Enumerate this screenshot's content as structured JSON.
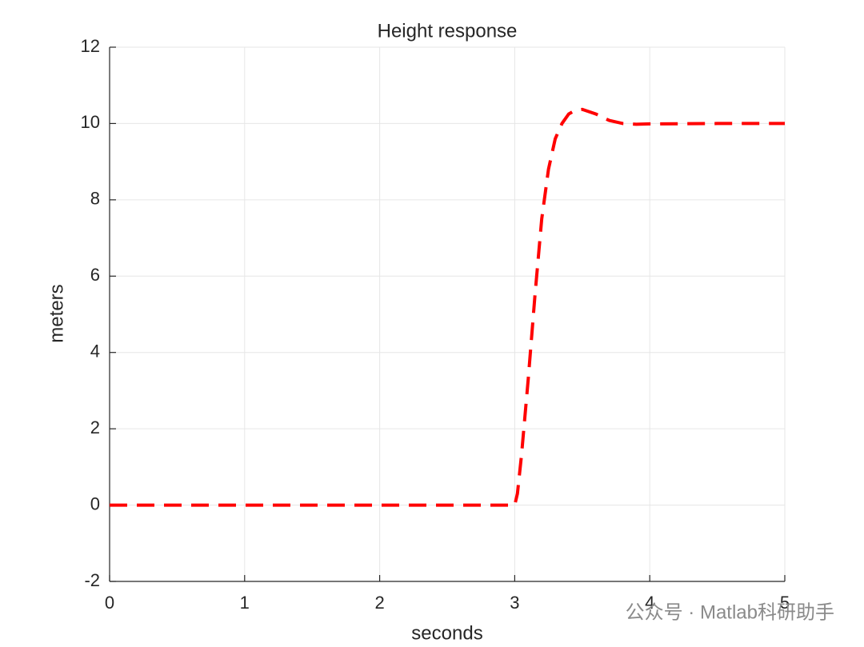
{
  "chart_data": {
    "type": "line",
    "title": "Height response",
    "x_label": "seconds",
    "y_label": "meters",
    "x": [
      0,
      0.5,
      1,
      1.5,
      2,
      2.5,
      3,
      3.02,
      3.05,
      3.1,
      3.15,
      3.2,
      3.25,
      3.3,
      3.35,
      3.4,
      3.45,
      3.5,
      3.6,
      3.7,
      3.8,
      3.9,
      4,
      4.5,
      5
    ],
    "series": [
      {
        "color": "#ff0000",
        "values": [
          0,
          0,
          0,
          0,
          0,
          0,
          0,
          0.3,
          1.3,
          3.3,
          5.5,
          7.5,
          8.8,
          9.6,
          10.0,
          10.25,
          10.35,
          10.37,
          10.25,
          10.08,
          10.0,
          9.98,
          9.99,
          10,
          10
        ]
      }
    ],
    "xlim": [
      0,
      5
    ],
    "xticks": [
      0,
      1,
      2,
      3,
      4,
      5
    ],
    "ylim": [
      -2,
      12
    ],
    "yticks": [
      -2,
      0,
      2,
      4,
      6,
      8,
      10,
      12
    ],
    "grid": true,
    "line_style": "dashed",
    "watermark": "公众号 · Matlab科研助手"
  }
}
